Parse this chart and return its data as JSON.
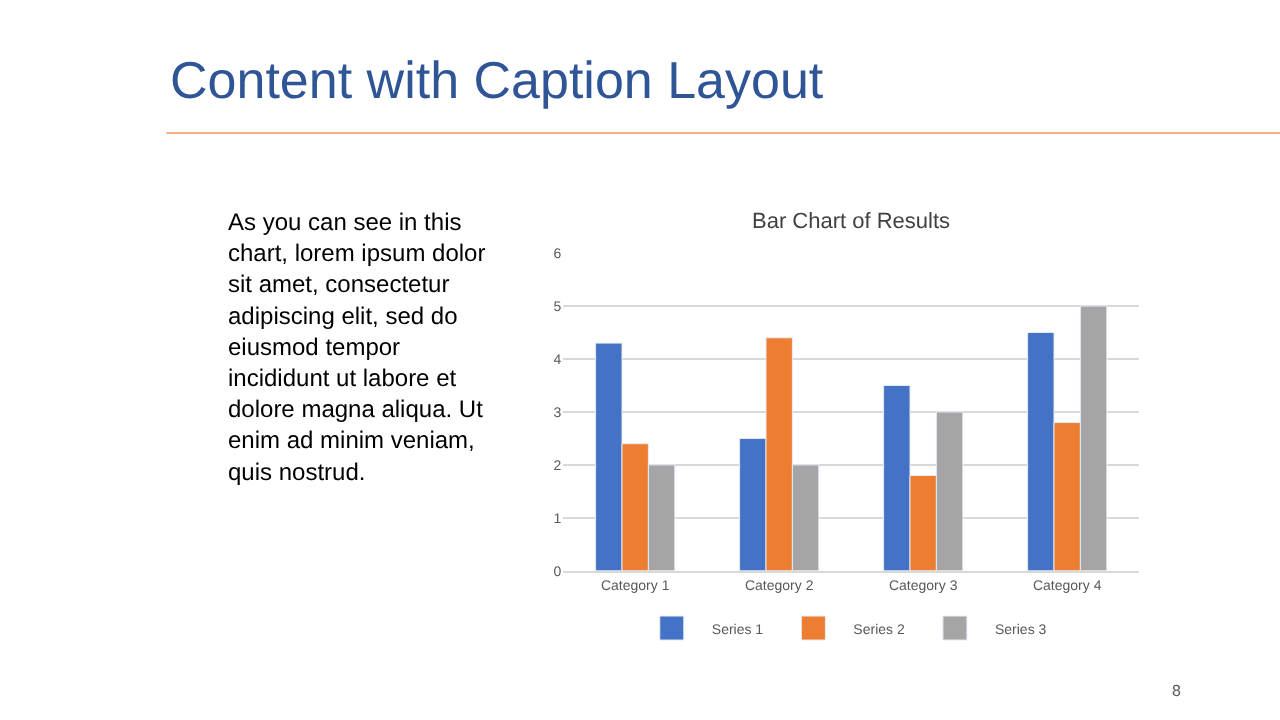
{
  "chart_data": {
    "type": "bar",
    "title": "Content with Caption Layout",
    "subtitle": "Bar Chart of Results",
    "annotations": [
      "As you can see in this chart, lorem ipsum dolor sit amet, consectetur adipiscing elit, sed do eiusmod tempor incididunt ut labore et dolore magna aliqua. Ut enim ad minim veniam, quis nostrud.",
      "8"
    ],
    "categories": [
      "Category 1",
      "Category 2",
      "Category 3",
      "Category 4"
    ],
    "series": [
      {
        "name": "Series 1",
        "color": "#4472c4",
        "values": [
          4.3,
          2.5,
          3.5,
          4.5
        ]
      },
      {
        "name": "Series 2",
        "color": "#ed7d31",
        "values": [
          2.4,
          4.4,
          1.8,
          2.8
        ]
      },
      {
        "name": "Series 3",
        "color": "#a5a5a5",
        "values": [
          2,
          2,
          3,
          5
        ]
      }
    ],
    "ylim": [
      0,
      6
    ],
    "yticks": [
      0,
      1,
      2,
      3,
      4,
      5,
      6
    ],
    "grid": "y",
    "legend": "bottom"
  }
}
